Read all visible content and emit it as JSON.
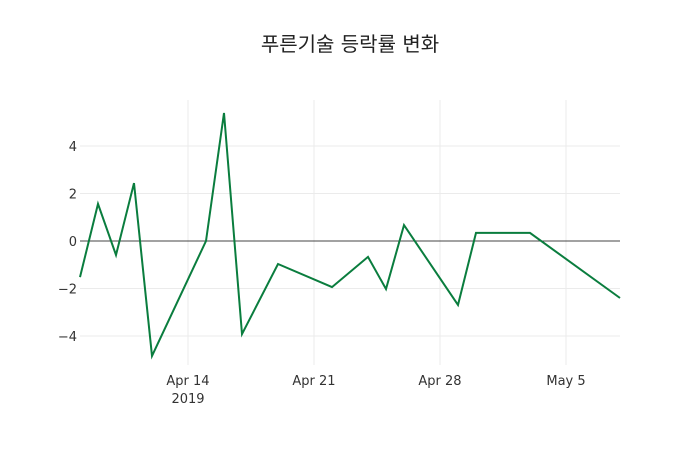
{
  "chart_data": {
    "type": "line",
    "title": "푸른기술 등락률 변화",
    "xlabel": "",
    "ylabel": "",
    "x": [
      "2019-04-08",
      "2019-04-09",
      "2019-04-10",
      "2019-04-11",
      "2019-04-12",
      "2019-04-15",
      "2019-04-16",
      "2019-04-17",
      "2019-04-19",
      "2019-04-22",
      "2019-04-24",
      "2019-04-25",
      "2019-04-26",
      "2019-04-29",
      "2019-04-30",
      "2019-05-03",
      "2019-05-08"
    ],
    "series": [
      {
        "name": "등락률",
        "color": "#0a7d3e",
        "values": [
          -1.52,
          1.56,
          -0.59,
          2.44,
          -4.84,
          0.0,
          5.39,
          -3.92,
          -0.97,
          -1.94,
          -0.67,
          -2.02,
          0.67,
          -2.69,
          0.34,
          0.34,
          -2.4
        ]
      }
    ],
    "x_ticks": [
      {
        "label": "Apr 14",
        "sub": "2019",
        "date": "2019-04-14"
      },
      {
        "label": "Apr 21",
        "date": "2019-04-21"
      },
      {
        "label": "Apr 28",
        "date": "2019-04-28"
      },
      {
        "label": "May 5",
        "date": "2019-05-05"
      }
    ],
    "y_ticks": [
      4,
      2,
      0,
      -2,
      -4
    ],
    "y_tick_labels": [
      "4",
      "2",
      "0",
      "−2",
      "−4"
    ],
    "ylim": [
      -5.2,
      6.0
    ],
    "grid": true,
    "zero_line": true,
    "legend": false
  }
}
